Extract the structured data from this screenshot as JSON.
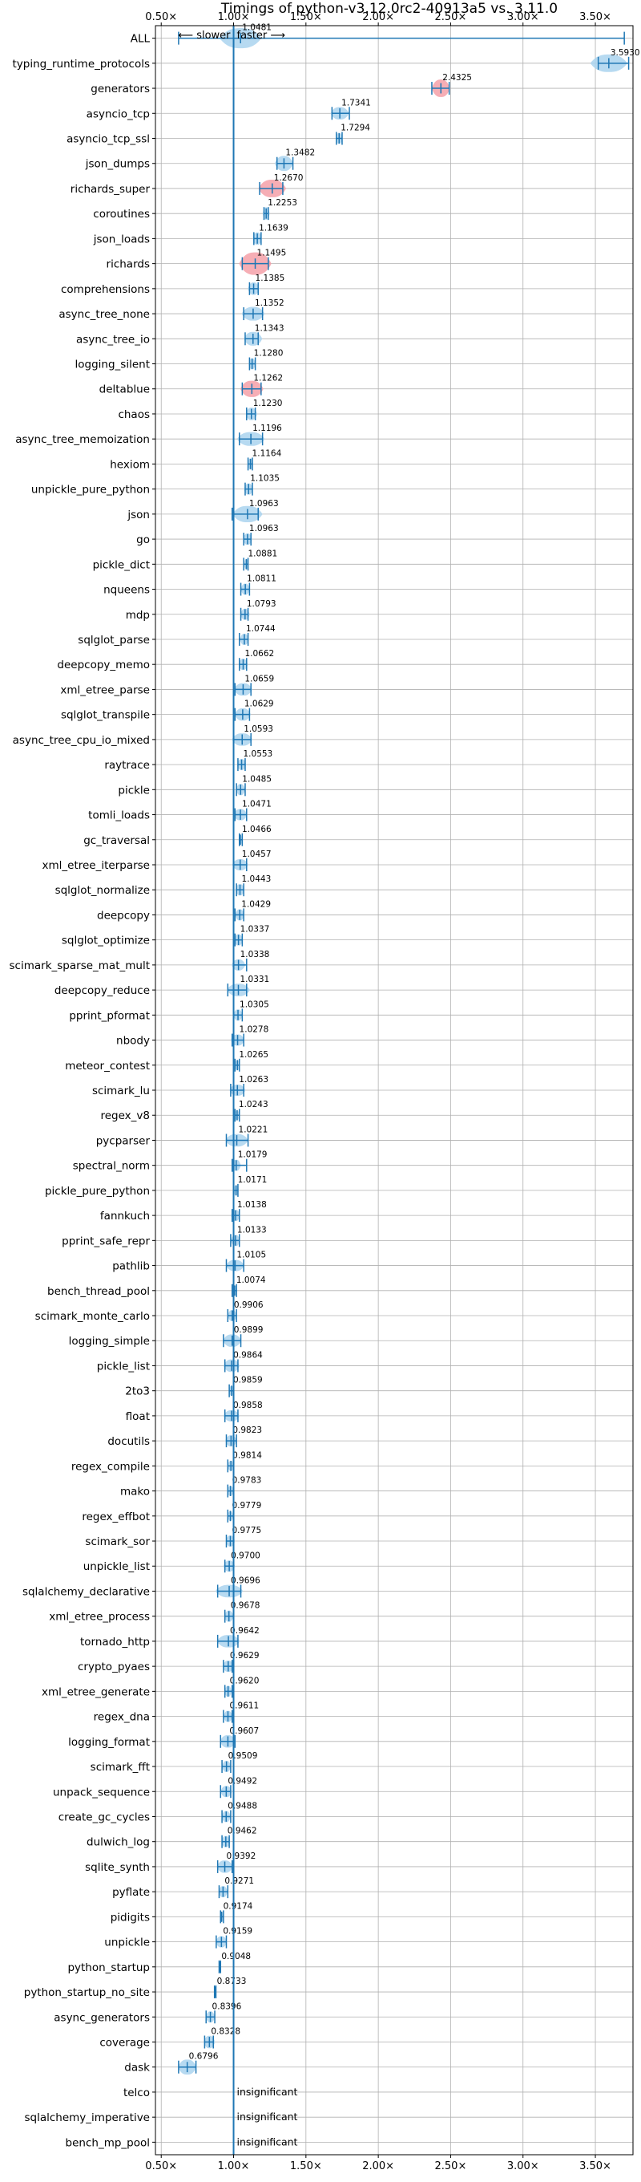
{
  "chart_data": {
    "type": "violin",
    "title": "Timings of python-v3.12.0rc2-40913a5 vs. 3.11.0",
    "direction_labels": {
      "slower": "⟵ slower",
      "faster": "faster ⟶"
    },
    "xlim": [
      0.46,
      3.76
    ],
    "xticks": [
      0.5,
      1.0,
      1.5,
      2.0,
      2.5,
      3.0,
      3.5
    ],
    "xtick_labels": [
      "0.50×",
      "1.00×",
      "1.50×",
      "2.00×",
      "2.50×",
      "3.00×",
      "3.50×"
    ],
    "grid": true,
    "insignificant_label": "insignificant",
    "colors": {
      "faster": "#aad4ee",
      "slower": "#f4a0a8",
      "marker": "#1f77b4"
    },
    "benchmarks": [
      {
        "name": "ALL",
        "value": 1.0481,
        "label": "1.0481",
        "min": 0.62,
        "max": 3.7,
        "spread": 0.09,
        "height": 0.8,
        "color": "faster"
      },
      {
        "name": "typing_runtime_protocols",
        "value": 3.593,
        "label": "3.5930",
        "min": 3.52,
        "max": 3.73,
        "spread": 0.08,
        "height": 0.7,
        "color": "faster"
      },
      {
        "name": "generators",
        "value": 2.4325,
        "label": "2.4325",
        "min": 2.37,
        "max": 2.49,
        "spread": 0.04,
        "height": 0.7,
        "color": "slower"
      },
      {
        "name": "asyncio_tcp",
        "value": 1.7341,
        "label": "1.7341",
        "min": 1.68,
        "max": 1.8,
        "spread": 0.04,
        "height": 0.5,
        "color": "faster"
      },
      {
        "name": "asyncio_tcp_ssl",
        "value": 1.7294,
        "label": "1.7294",
        "min": 1.71,
        "max": 1.75,
        "spread": 0.015,
        "height": 0.45,
        "color": "faster"
      },
      {
        "name": "json_dumps",
        "value": 1.3482,
        "label": "1.3482",
        "min": 1.3,
        "max": 1.41,
        "spread": 0.04,
        "height": 0.6,
        "color": "faster"
      },
      {
        "name": "richards_super",
        "value": 1.267,
        "label": "1.2670",
        "min": 1.18,
        "max": 1.34,
        "spread": 0.06,
        "height": 0.7,
        "color": "slower"
      },
      {
        "name": "coroutines",
        "value": 1.2253,
        "label": "1.2253",
        "min": 1.21,
        "max": 1.24,
        "spread": 0.015,
        "height": 0.5,
        "color": "faster"
      },
      {
        "name": "json_loads",
        "value": 1.1639,
        "label": "1.1639",
        "min": 1.14,
        "max": 1.19,
        "spread": 0.02,
        "height": 0.5,
        "color": "faster"
      },
      {
        "name": "richards",
        "value": 1.1495,
        "label": "1.1495",
        "min": 1.06,
        "max": 1.24,
        "spread": 0.07,
        "height": 0.9,
        "color": "slower"
      },
      {
        "name": "comprehensions",
        "value": 1.1385,
        "label": "1.1385",
        "min": 1.11,
        "max": 1.17,
        "spread": 0.025,
        "height": 0.5,
        "color": "faster"
      },
      {
        "name": "async_tree_none",
        "value": 1.1352,
        "label": "1.1352",
        "min": 1.07,
        "max": 1.2,
        "spread": 0.05,
        "height": 0.55,
        "color": "faster"
      },
      {
        "name": "async_tree_io",
        "value": 1.1343,
        "label": "1.1343",
        "min": 1.08,
        "max": 1.17,
        "spread": 0.04,
        "height": 0.55,
        "color": "faster"
      },
      {
        "name": "logging_silent",
        "value": 1.128,
        "label": "1.1280",
        "min": 1.11,
        "max": 1.15,
        "spread": 0.015,
        "height": 0.45,
        "color": "faster"
      },
      {
        "name": "deltablue",
        "value": 1.1262,
        "label": "1.1262",
        "min": 1.06,
        "max": 1.19,
        "spread": 0.05,
        "height": 0.65,
        "color": "slower"
      },
      {
        "name": "chaos",
        "value": 1.123,
        "label": "1.1230",
        "min": 1.09,
        "max": 1.15,
        "spread": 0.025,
        "height": 0.5,
        "color": "faster"
      },
      {
        "name": "async_tree_memoization",
        "value": 1.1196,
        "label": "1.1196",
        "min": 1.04,
        "max": 1.2,
        "spread": 0.06,
        "height": 0.55,
        "color": "faster"
      },
      {
        "name": "hexiom",
        "value": 1.1164,
        "label": "1.1164",
        "min": 1.1,
        "max": 1.13,
        "spread": 0.012,
        "height": 0.45,
        "color": "faster"
      },
      {
        "name": "unpickle_pure_python",
        "value": 1.1035,
        "label": "1.1035",
        "min": 1.08,
        "max": 1.13,
        "spread": 0.02,
        "height": 0.45,
        "color": "faster"
      },
      {
        "name": "json",
        "value": 1.0963,
        "label": "1.0963",
        "min": 0.99,
        "max": 1.17,
        "spread": 0.065,
        "height": 0.65,
        "color": "faster"
      },
      {
        "name": "go",
        "value": 1.0963,
        "label": "1.0963",
        "min": 1.07,
        "max": 1.12,
        "spread": 0.02,
        "height": 0.45,
        "color": "faster"
      },
      {
        "name": "pickle_dict",
        "value": 1.0881,
        "label": "1.0881",
        "min": 1.07,
        "max": 1.1,
        "spread": 0.01,
        "height": 0.4,
        "color": "faster"
      },
      {
        "name": "nqueens",
        "value": 1.0811,
        "label": "1.0811",
        "min": 1.05,
        "max": 1.11,
        "spread": 0.02,
        "height": 0.45,
        "color": "faster"
      },
      {
        "name": "mdp",
        "value": 1.0793,
        "label": "1.0793",
        "min": 1.05,
        "max": 1.1,
        "spread": 0.02,
        "height": 0.45,
        "color": "faster"
      },
      {
        "name": "sqlglot_parse",
        "value": 1.0744,
        "label": "1.0744",
        "min": 1.04,
        "max": 1.1,
        "spread": 0.02,
        "height": 0.45,
        "color": "faster"
      },
      {
        "name": "deepcopy_memo",
        "value": 1.0662,
        "label": "1.0662",
        "min": 1.04,
        "max": 1.09,
        "spread": 0.02,
        "height": 0.45,
        "color": "faster"
      },
      {
        "name": "xml_etree_parse",
        "value": 1.0659,
        "label": "1.0659",
        "min": 1.01,
        "max": 1.12,
        "spread": 0.04,
        "height": 0.5,
        "color": "faster"
      },
      {
        "name": "sqlglot_transpile",
        "value": 1.0629,
        "label": "1.0629",
        "min": 1.01,
        "max": 1.11,
        "spread": 0.035,
        "height": 0.5,
        "color": "faster"
      },
      {
        "name": "async_tree_cpu_io_mixed",
        "value": 1.0593,
        "label": "1.0593",
        "min": 1.0,
        "max": 1.12,
        "spread": 0.045,
        "height": 0.5,
        "color": "faster"
      },
      {
        "name": "raytrace",
        "value": 1.0553,
        "label": "1.0553",
        "min": 1.03,
        "max": 1.08,
        "spread": 0.02,
        "height": 0.45,
        "color": "faster"
      },
      {
        "name": "pickle",
        "value": 1.0485,
        "label": "1.0485",
        "min": 1.02,
        "max": 1.08,
        "spread": 0.02,
        "height": 0.45,
        "color": "faster"
      },
      {
        "name": "tomli_loads",
        "value": 1.0471,
        "label": "1.0471",
        "min": 1.01,
        "max": 1.09,
        "spread": 0.03,
        "height": 0.45,
        "color": "faster"
      },
      {
        "name": "gc_traversal",
        "value": 1.0466,
        "label": "1.0466",
        "min": 1.04,
        "max": 1.06,
        "spread": 0.008,
        "height": 0.4,
        "color": "faster"
      },
      {
        "name": "xml_etree_iterparse",
        "value": 1.0457,
        "label": "1.0457",
        "min": 1.0,
        "max": 1.09,
        "spread": 0.035,
        "height": 0.45,
        "color": "faster"
      },
      {
        "name": "sqlglot_normalize",
        "value": 1.0443,
        "label": "1.0443",
        "min": 1.02,
        "max": 1.07,
        "spread": 0.02,
        "height": 0.45,
        "color": "faster"
      },
      {
        "name": "deepcopy",
        "value": 1.0429,
        "label": "1.0429",
        "min": 1.01,
        "max": 1.07,
        "spread": 0.02,
        "height": 0.45,
        "color": "faster"
      },
      {
        "name": "sqlglot_optimize",
        "value": 1.0337,
        "label": "1.0337",
        "min": 1.01,
        "max": 1.06,
        "spread": 0.02,
        "height": 0.45,
        "color": "faster"
      },
      {
        "name": "scimark_sparse_mat_mult",
        "value": 1.0338,
        "label": "1.0338",
        "min": 1.0,
        "max": 1.09,
        "spread": 0.03,
        "height": 0.45,
        "color": "faster"
      },
      {
        "name": "deepcopy_reduce",
        "value": 1.0331,
        "label": "1.0331",
        "min": 0.96,
        "max": 1.09,
        "spread": 0.05,
        "height": 0.5,
        "color": "faster"
      },
      {
        "name": "pprint_pformat",
        "value": 1.0305,
        "label": "1.0305",
        "min": 1.0,
        "max": 1.06,
        "spread": 0.02,
        "height": 0.45,
        "color": "faster"
      },
      {
        "name": "nbody",
        "value": 1.0278,
        "label": "1.0278",
        "min": 0.99,
        "max": 1.07,
        "spread": 0.03,
        "height": 0.45,
        "color": "faster"
      },
      {
        "name": "meteor_contest",
        "value": 1.0265,
        "label": "1.0265",
        "min": 1.01,
        "max": 1.04,
        "spread": 0.012,
        "height": 0.4,
        "color": "faster"
      },
      {
        "name": "scimark_lu",
        "value": 1.0263,
        "label": "1.0263",
        "min": 0.98,
        "max": 1.07,
        "spread": 0.035,
        "height": 0.45,
        "color": "faster"
      },
      {
        "name": "regex_v8",
        "value": 1.0243,
        "label": "1.0243",
        "min": 1.01,
        "max": 1.04,
        "spread": 0.01,
        "height": 0.4,
        "color": "faster"
      },
      {
        "name": "pycparser",
        "value": 1.0221,
        "label": "1.0221",
        "min": 0.95,
        "max": 1.1,
        "spread": 0.05,
        "height": 0.5,
        "color": "faster"
      },
      {
        "name": "spectral_norm",
        "value": 1.0179,
        "label": "1.0179",
        "min": 0.99,
        "max": 1.09,
        "spread": 0.02,
        "height": 0.45,
        "color": "faster"
      },
      {
        "name": "pickle_pure_python",
        "value": 1.0171,
        "label": "1.0171",
        "min": 1.0,
        "max": 1.03,
        "spread": 0.012,
        "height": 0.4,
        "color": "faster"
      },
      {
        "name": "fannkuch",
        "value": 1.0138,
        "label": "1.0138",
        "min": 0.99,
        "max": 1.04,
        "spread": 0.02,
        "height": 0.45,
        "color": "faster"
      },
      {
        "name": "pprint_safe_repr",
        "value": 1.0133,
        "label": "1.0133",
        "min": 0.98,
        "max": 1.04,
        "spread": 0.02,
        "height": 0.45,
        "color": "faster"
      },
      {
        "name": "pathlib",
        "value": 1.0105,
        "label": "1.0105",
        "min": 0.95,
        "max": 1.07,
        "spread": 0.04,
        "height": 0.45,
        "color": "faster"
      },
      {
        "name": "bench_thread_pool",
        "value": 1.0074,
        "label": "1.0074",
        "min": 0.99,
        "max": 1.02,
        "spread": 0.012,
        "height": 0.4,
        "color": "faster"
      },
      {
        "name": "scimark_monte_carlo",
        "value": 0.9906,
        "label": "0.9906",
        "min": 0.96,
        "max": 1.02,
        "spread": 0.02,
        "height": 0.45,
        "color": "faster"
      },
      {
        "name": "logging_simple",
        "value": 0.9899,
        "label": "0.9899",
        "min": 0.93,
        "max": 1.05,
        "spread": 0.04,
        "height": 0.5,
        "color": "faster"
      },
      {
        "name": "pickle_list",
        "value": 0.9864,
        "label": "0.9864",
        "min": 0.94,
        "max": 1.03,
        "spread": 0.035,
        "height": 0.5,
        "color": "faster"
      },
      {
        "name": "2to3",
        "value": 0.9859,
        "label": "0.9859",
        "min": 0.97,
        "max": 1.0,
        "spread": 0.012,
        "height": 0.4,
        "color": "faster"
      },
      {
        "name": "float",
        "value": 0.9858,
        "label": "0.9858",
        "min": 0.94,
        "max": 1.03,
        "spread": 0.035,
        "height": 0.45,
        "color": "faster"
      },
      {
        "name": "docutils",
        "value": 0.9823,
        "label": "0.9823",
        "min": 0.95,
        "max": 1.02,
        "spread": 0.025,
        "height": 0.45,
        "color": "faster"
      },
      {
        "name": "regex_compile",
        "value": 0.9814,
        "label": "0.9814",
        "min": 0.96,
        "max": 1.0,
        "spread": 0.015,
        "height": 0.4,
        "color": "faster"
      },
      {
        "name": "mako",
        "value": 0.9783,
        "label": "0.9783",
        "min": 0.96,
        "max": 1.0,
        "spread": 0.015,
        "height": 0.4,
        "color": "faster"
      },
      {
        "name": "regex_effbot",
        "value": 0.9779,
        "label": "0.9779",
        "min": 0.96,
        "max": 1.0,
        "spread": 0.012,
        "height": 0.4,
        "color": "faster"
      },
      {
        "name": "scimark_sor",
        "value": 0.9775,
        "label": "0.9775",
        "min": 0.95,
        "max": 1.0,
        "spread": 0.02,
        "height": 0.45,
        "color": "faster"
      },
      {
        "name": "unpickle_list",
        "value": 0.97,
        "label": "0.9700",
        "min": 0.94,
        "max": 1.0,
        "spread": 0.025,
        "height": 0.45,
        "color": "faster"
      },
      {
        "name": "sqlalchemy_declarative",
        "value": 0.9696,
        "label": "0.9696",
        "min": 0.89,
        "max": 1.05,
        "spread": 0.06,
        "height": 0.5,
        "color": "faster"
      },
      {
        "name": "xml_etree_process",
        "value": 0.9678,
        "label": "0.9678",
        "min": 0.94,
        "max": 1.0,
        "spread": 0.02,
        "height": 0.45,
        "color": "faster"
      },
      {
        "name": "tornado_http",
        "value": 0.9642,
        "label": "0.9642",
        "min": 0.89,
        "max": 1.03,
        "spread": 0.05,
        "height": 0.5,
        "color": "faster"
      },
      {
        "name": "crypto_pyaes",
        "value": 0.9629,
        "label": "0.9629",
        "min": 0.93,
        "max": 0.99,
        "spread": 0.025,
        "height": 0.45,
        "color": "faster"
      },
      {
        "name": "xml_etree_generate",
        "value": 0.962,
        "label": "0.9620",
        "min": 0.94,
        "max": 0.99,
        "spread": 0.015,
        "height": 0.45,
        "color": "faster"
      },
      {
        "name": "regex_dna",
        "value": 0.9611,
        "label": "0.9611",
        "min": 0.93,
        "max": 0.99,
        "spread": 0.02,
        "height": 0.45,
        "color": "faster"
      },
      {
        "name": "logging_format",
        "value": 0.9607,
        "label": "0.9607",
        "min": 0.91,
        "max": 1.01,
        "spread": 0.035,
        "height": 0.5,
        "color": "faster"
      },
      {
        "name": "scimark_fft",
        "value": 0.9509,
        "label": "0.9509",
        "min": 0.92,
        "max": 0.98,
        "spread": 0.02,
        "height": 0.45,
        "color": "faster"
      },
      {
        "name": "unpack_sequence",
        "value": 0.9492,
        "label": "0.9492",
        "min": 0.91,
        "max": 0.98,
        "spread": 0.025,
        "height": 0.45,
        "color": "faster"
      },
      {
        "name": "create_gc_cycles",
        "value": 0.9488,
        "label": "0.9488",
        "min": 0.92,
        "max": 0.98,
        "spread": 0.02,
        "height": 0.45,
        "color": "faster"
      },
      {
        "name": "dulwich_log",
        "value": 0.9462,
        "label": "0.9462",
        "min": 0.92,
        "max": 0.97,
        "spread": 0.02,
        "height": 0.45,
        "color": "faster"
      },
      {
        "name": "sqlite_synth",
        "value": 0.9392,
        "label": "0.9392",
        "min": 0.89,
        "max": 0.99,
        "spread": 0.035,
        "height": 0.5,
        "color": "faster"
      },
      {
        "name": "pyflate",
        "value": 0.9271,
        "label": "0.9271",
        "min": 0.9,
        "max": 0.96,
        "spread": 0.02,
        "height": 0.45,
        "color": "faster"
      },
      {
        "name": "pidigits",
        "value": 0.9174,
        "label": "0.9174",
        "min": 0.91,
        "max": 0.93,
        "spread": 0.008,
        "height": 0.4,
        "color": "faster"
      },
      {
        "name": "unpickle",
        "value": 0.9159,
        "label": "0.9159",
        "min": 0.88,
        "max": 0.95,
        "spread": 0.025,
        "height": 0.45,
        "color": "faster"
      },
      {
        "name": "python_startup",
        "value": 0.9048,
        "label": "0.9048",
        "min": 0.9,
        "max": 0.91,
        "spread": 0.005,
        "height": 0.4,
        "color": "faster"
      },
      {
        "name": "python_startup_no_site",
        "value": 0.8733,
        "label": "0.8733",
        "min": 0.868,
        "max": 0.878,
        "spread": 0.005,
        "height": 0.4,
        "color": "faster"
      },
      {
        "name": "async_generators",
        "value": 0.8396,
        "label": "0.8396",
        "min": 0.81,
        "max": 0.87,
        "spread": 0.02,
        "height": 0.45,
        "color": "faster"
      },
      {
        "name": "coverage",
        "value": 0.8328,
        "label": "0.8328",
        "min": 0.8,
        "max": 0.86,
        "spread": 0.025,
        "height": 0.5,
        "color": "faster"
      },
      {
        "name": "dask",
        "value": 0.6796,
        "label": "0.6796",
        "min": 0.62,
        "max": 0.74,
        "spread": 0.04,
        "height": 0.6,
        "color": "faster"
      },
      {
        "name": "telco",
        "value": null,
        "label": "insignificant"
      },
      {
        "name": "sqlalchemy_imperative",
        "value": null,
        "label": "insignificant"
      },
      {
        "name": "bench_mp_pool",
        "value": null,
        "label": "insignificant"
      }
    ]
  }
}
